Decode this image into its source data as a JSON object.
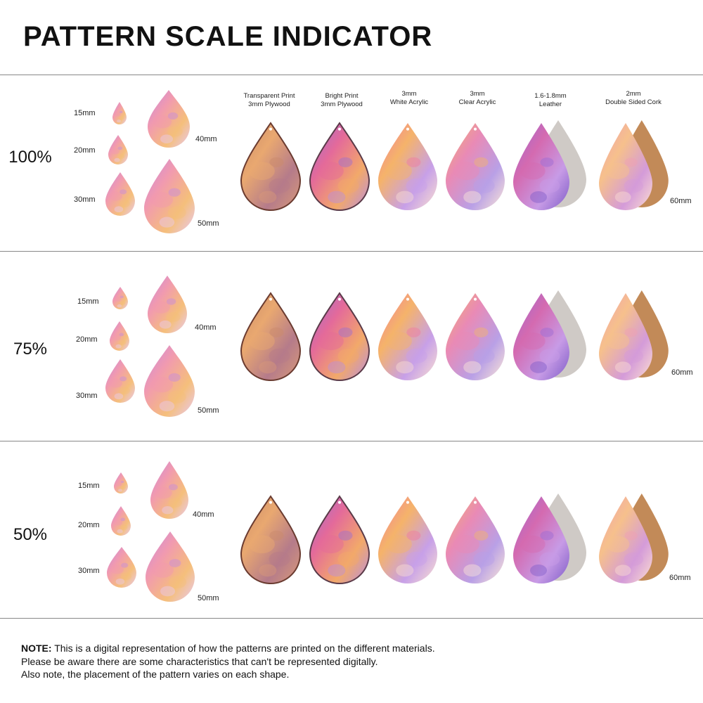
{
  "title": "PATTERN SCALE INDICATOR",
  "materials": [
    {
      "line1": "Transparent Print",
      "line2": "3mm Plywood"
    },
    {
      "line1": "Bright Print",
      "line2": "3mm Plywood"
    },
    {
      "line1": "3mm",
      "line2": "White Acrylic"
    },
    {
      "line1": "3mm",
      "line2": "Clear Acrylic"
    },
    {
      "line1": "1.6-1.8mm",
      "line2": "Leather"
    },
    {
      "line1": "2mm",
      "line2": "Double Sided Cork"
    }
  ],
  "sections": [
    {
      "scale": "100%",
      "sizes": [
        "15mm",
        "20mm",
        "30mm",
        "40mm",
        "50mm"
      ],
      "large_size": "60mm"
    },
    {
      "scale": "75%",
      "sizes": [
        "15mm",
        "20mm",
        "30mm",
        "40mm",
        "50mm"
      ],
      "large_size": "60mm"
    },
    {
      "scale": "50%",
      "sizes": [
        "15mm",
        "20mm",
        "30mm",
        "40mm",
        "50mm"
      ],
      "large_size": "60mm"
    }
  ],
  "note": {
    "label": "NOTE:",
    "line1": " This is a digital representation of how the patterns are printed on the different materials.",
    "line2": "Please be aware there are some characteristics that can't be represented digitally.",
    "line3": "Also note, the placement of the pattern varies on each shape."
  }
}
